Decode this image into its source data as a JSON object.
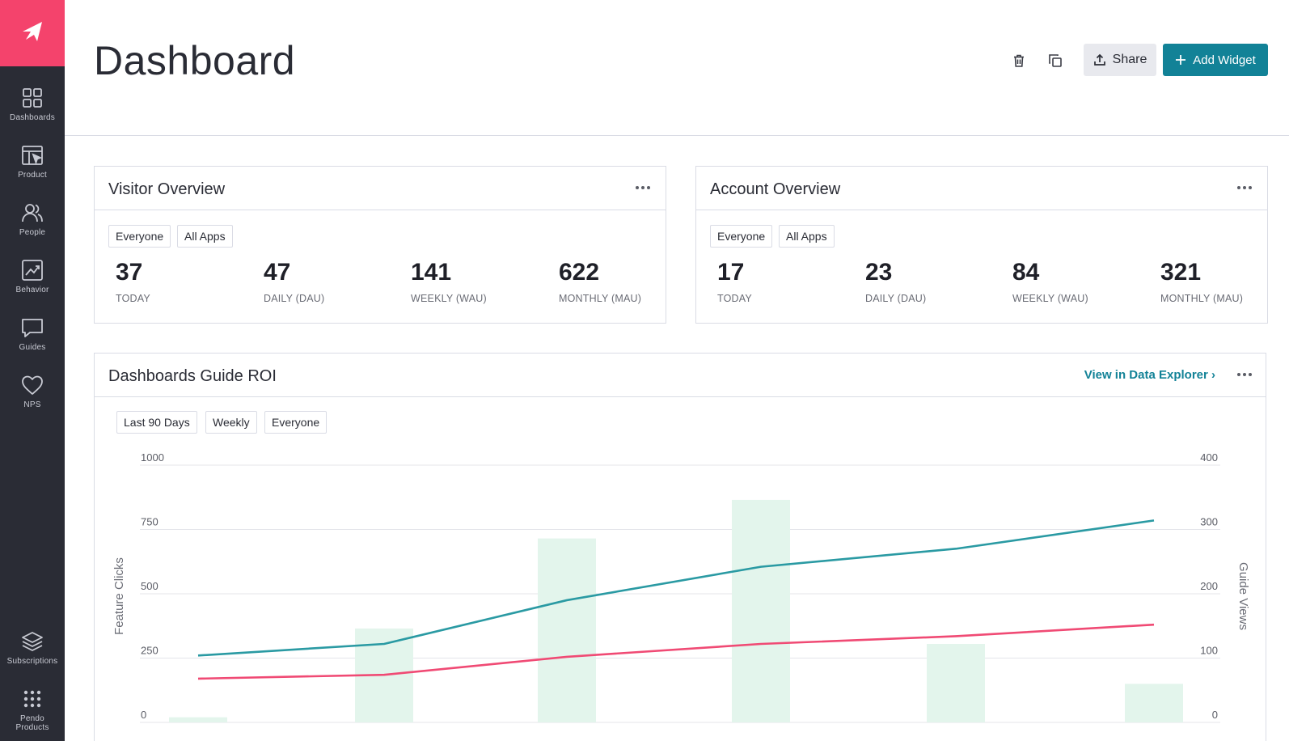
{
  "nav": {
    "items": [
      {
        "label": "Dashboards",
        "icon": "grid-icon"
      },
      {
        "label": "Product",
        "icon": "layout-cursor-icon"
      },
      {
        "label": "People",
        "icon": "people-icon"
      },
      {
        "label": "Behavior",
        "icon": "chart-trend-icon"
      },
      {
        "label": "Guides",
        "icon": "chat-bubble-icon"
      },
      {
        "label": "NPS",
        "icon": "heart-icon"
      },
      {
        "label": "Subscriptions",
        "icon": "layers-icon"
      },
      {
        "label": "Pendo Products",
        "icon": "dots-grid-icon"
      }
    ]
  },
  "header": {
    "title": "Dashboard",
    "share_label": "Share",
    "add_widget_label": "Add Widget"
  },
  "visitor_overview": {
    "title": "Visitor Overview",
    "filters": [
      "Everyone",
      "All Apps"
    ],
    "metrics": [
      {
        "value": "37",
        "label": "TODAY"
      },
      {
        "value": "47",
        "label": "DAILY (DAU)"
      },
      {
        "value": "141",
        "label": "WEEKLY (WAU)"
      },
      {
        "value": "622",
        "label": "MONTHLY (MAU)"
      }
    ]
  },
  "account_overview": {
    "title": "Account Overview",
    "filters": [
      "Everyone",
      "All Apps"
    ],
    "metrics": [
      {
        "value": "17",
        "label": "TODAY"
      },
      {
        "value": "23",
        "label": "DAILY (DAU)"
      },
      {
        "value": "84",
        "label": "WEEKLY (WAU)"
      },
      {
        "value": "321",
        "label": "MONTHLY (MAU)"
      }
    ]
  },
  "guide_roi": {
    "title": "Dashboards Guide ROI",
    "link_label": "View in Data Explorer ›",
    "filters": [
      "Last 90 Days",
      "Weekly",
      "Everyone"
    ]
  },
  "chart_data": {
    "type": "bar",
    "ylabel": "Feature Clicks",
    "y2label": "Guide Views",
    "ylim": [
      0,
      1000
    ],
    "y2lim": [
      0,
      400
    ],
    "y_ticks": [
      "0",
      "250",
      "500",
      "750",
      "1000"
    ],
    "y2_ticks": [
      "0",
      "100",
      "200",
      "300",
      "400"
    ],
    "grid": true,
    "bars": {
      "axis": "left",
      "color": "#e3f5ec",
      "values": [
        20,
        365,
        715,
        865,
        305,
        150
      ]
    },
    "series": [
      {
        "axis": "left",
        "color": "#2a9aa3",
        "values": [
          260,
          305,
          475,
          605,
          675,
          785
        ]
      },
      {
        "axis": "left",
        "color": "#f04a74",
        "values": [
          170,
          185,
          255,
          305,
          335,
          380
        ]
      }
    ]
  },
  "colors": {
    "sidebar": "#2a2c35",
    "brand": "#f4436c",
    "accent": "#128297"
  }
}
